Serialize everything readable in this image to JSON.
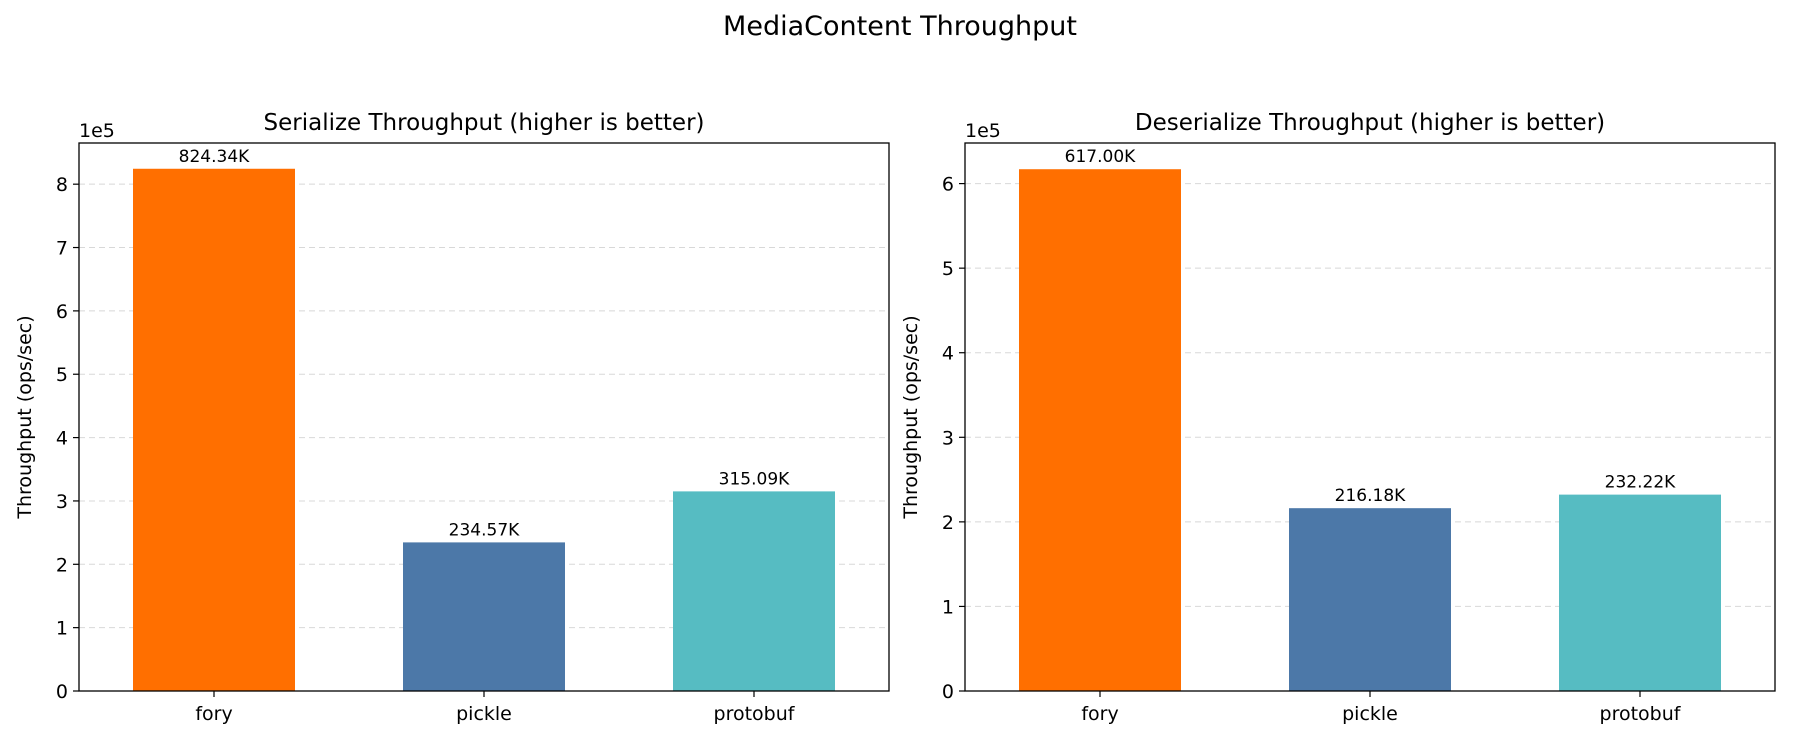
{
  "figure": {
    "title": "MediaContent Throughput"
  },
  "chart_data": [
    {
      "type": "bar",
      "title": "Serialize Throughput (higher is better)",
      "xlabel": "",
      "ylabel": "Throughput (ops/sec)",
      "axis_offset_label": "1e5",
      "y_tick_scale": 100000,
      "ylim": [
        0,
        865000
      ],
      "yticks": [
        0,
        100000,
        200000,
        300000,
        400000,
        500000,
        600000,
        700000,
        800000
      ],
      "ytick_labels": [
        "0",
        "1",
        "2",
        "3",
        "4",
        "5",
        "6",
        "7",
        "8"
      ],
      "grid": true,
      "categories": [
        "fory",
        "pickle",
        "protobuf"
      ],
      "values": [
        824340,
        234570,
        315090
      ],
      "value_labels": [
        "824.34K",
        "234.57K",
        "315.09K"
      ],
      "colors": [
        "#FF6F00",
        "#4C78A8",
        "#56BCC2"
      ]
    },
    {
      "type": "bar",
      "title": "Deserialize Throughput (higher is better)",
      "xlabel": "",
      "ylabel": "Throughput (ops/sec)",
      "axis_offset_label": "1e5",
      "y_tick_scale": 100000,
      "ylim": [
        0,
        648000
      ],
      "yticks": [
        0,
        100000,
        200000,
        300000,
        400000,
        500000,
        600000
      ],
      "ytick_labels": [
        "0",
        "1",
        "2",
        "3",
        "4",
        "5",
        "6"
      ],
      "grid": true,
      "categories": [
        "fory",
        "pickle",
        "protobuf"
      ],
      "values": [
        617000,
        216180,
        232220
      ],
      "value_labels": [
        "617.00K",
        "216.18K",
        "232.22K"
      ],
      "colors": [
        "#FF6F00",
        "#4C78A8",
        "#56BCC2"
      ]
    }
  ]
}
